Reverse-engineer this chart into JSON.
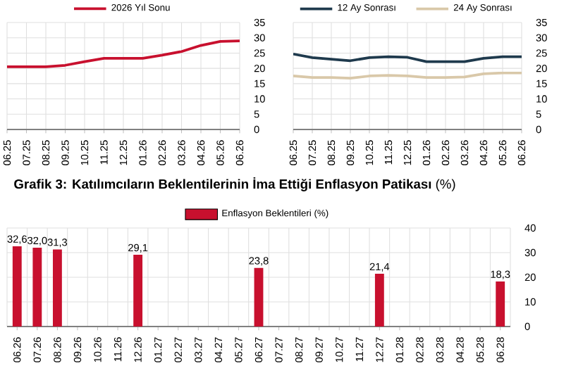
{
  "chart_data": [
    {
      "type": "line",
      "categories": [
        "06.25",
        "07.25",
        "08.25",
        "09.25",
        "10.25",
        "11.25",
        "12.25",
        "01.26",
        "02.26",
        "03.26",
        "04.26",
        "05.26",
        "06.26"
      ],
      "series": [
        {
          "name": "2026 Yıl Sonu",
          "color": "#c8102e",
          "values": [
            20.5,
            20.5,
            20.5,
            21,
            22.2,
            23.3,
            23.3,
            23.3,
            24.3,
            25.5,
            27.5,
            28.8,
            29
          ]
        }
      ],
      "ylim": [
        0,
        35
      ],
      "yticks": [
        0,
        5,
        10,
        15,
        20,
        25,
        30,
        35
      ],
      "grid": true,
      "legend": "top"
    },
    {
      "type": "line",
      "categories": [
        "06.25",
        "07.25",
        "08.25",
        "09.25",
        "10.25",
        "11.25",
        "12.25",
        "01.26",
        "02.26",
        "03.26",
        "04.26",
        "05.26",
        "06.26"
      ],
      "series": [
        {
          "name": "12 Ay Sonrası",
          "color": "#1f3a4d",
          "values": [
            24.7,
            23.5,
            23,
            22.5,
            23.5,
            23.8,
            23.6,
            22.2,
            22.2,
            22.2,
            23.3,
            23.8,
            23.8
          ]
        },
        {
          "name": "24 Ay Sonrası",
          "color": "#d9c8a9",
          "values": [
            17.5,
            17,
            17,
            16.8,
            17.5,
            17.7,
            17.5,
            17,
            17,
            17.2,
            18.2,
            18.5,
            18.5
          ]
        }
      ],
      "ylim": [
        0,
        35
      ],
      "yticks": [
        0,
        5,
        10,
        15,
        20,
        25,
        30,
        35
      ],
      "grid": true,
      "legend": "top"
    },
    {
      "type": "bar",
      "title": "**Grafik 3: Katılımcıların Beklentilerinin İma Ettiği Enflasyon Patikası** (%)",
      "categories": [
        "06.26",
        "07.26",
        "08.26",
        "09.26",
        "10.26",
        "11.26",
        "12.26",
        "01.27",
        "02.27",
        "03.27",
        "04.27",
        "05.27",
        "06.27",
        "07.27",
        "08.27",
        "09.27",
        "10.27",
        "11.27",
        "12.27",
        "01.28",
        "02.28",
        "03.28",
        "04.28",
        "05.28",
        "06.28"
      ],
      "series": [
        {
          "name": "Enflasyon Beklentileri (%)",
          "color": "#c8102e",
          "values": [
            32.6,
            32.0,
            31.3,
            null,
            null,
            null,
            29.1,
            null,
            null,
            null,
            null,
            null,
            23.8,
            null,
            null,
            null,
            null,
            null,
            21.4,
            null,
            null,
            null,
            null,
            null,
            18.3
          ],
          "value_labels": [
            "32,6",
            "32,0",
            "31,3",
            null,
            null,
            null,
            "29,1",
            null,
            null,
            null,
            null,
            null,
            "23,8",
            null,
            null,
            null,
            null,
            null,
            "21,4",
            null,
            null,
            null,
            null,
            null,
            "18,3"
          ]
        }
      ],
      "ylim": [
        0,
        40
      ],
      "yticks": [
        0,
        10,
        20,
        30,
        40
      ],
      "grid": true,
      "legend": "top"
    }
  ]
}
